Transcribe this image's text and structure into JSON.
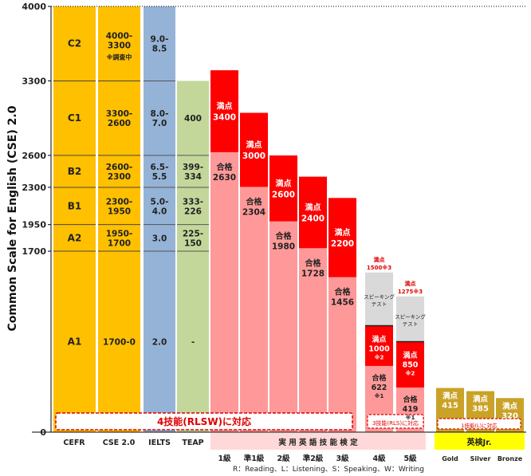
{
  "chart_data": {
    "type": "bar",
    "ylabel": "Common Scale for English (CSE) 2.0",
    "ylim": [
      0,
      4000
    ],
    "yticks": [
      0,
      1700,
      1950,
      2300,
      2600,
      3300,
      4000
    ],
    "cefr": {
      "label": "CEFR",
      "levels": [
        {
          "name": "C2",
          "lo": 3300,
          "hi": 4000
        },
        {
          "name": "C1",
          "lo": 2600,
          "hi": 3300
        },
        {
          "name": "B2",
          "lo": 2300,
          "hi": 2600
        },
        {
          "name": "B1",
          "lo": 1950,
          "hi": 2300
        },
        {
          "name": "A2",
          "lo": 1700,
          "hi": 1950
        },
        {
          "name": "A1",
          "lo": 0,
          "hi": 1700
        }
      ]
    },
    "cse": {
      "label": "CSE 2.0",
      "levels": [
        {
          "text": "4000-\n3300",
          "note": "※調査中"
        },
        {
          "text": "3300-\n2600"
        },
        {
          "text": "2600-\n2300"
        },
        {
          "text": "2300-\n1950"
        },
        {
          "text": "1950-\n1700"
        },
        {
          "text": "1700-0"
        }
      ]
    },
    "ielts": {
      "label": "IELTS",
      "levels": [
        "9.0-\n8.5",
        "8.0-\n7.0",
        "6.5-\n5.5",
        "5.0-\n4.0",
        "3.0",
        "2.0"
      ]
    },
    "teap": {
      "label": "TEAP",
      "max": 3300,
      "levels": [
        "400",
        "399-\n334",
        "333-\n226",
        "225-\n150",
        "-"
      ]
    },
    "eiken": {
      "group_label": "実 用 英 語 技 能 検 定",
      "full_label": "満点",
      "pass_label": "合格",
      "speaking_label": "スピーキング\nテスト",
      "grades": [
        {
          "name": "1級",
          "full": 3400,
          "pass": 2630
        },
        {
          "name": "準1級",
          "full": 3000,
          "pass": 2304
        },
        {
          "name": "2級",
          "full": 2600,
          "pass": 1980
        },
        {
          "name": "準2級",
          "full": 2400,
          "pass": 1728
        },
        {
          "name": "3級",
          "full": 2200,
          "pass": 1456
        },
        {
          "name": "4級",
          "full": 1000,
          "pass": 622,
          "full_note": "※2",
          "pass_note": "※1",
          "speaking_max": 1500,
          "speaking_note": "※3"
        },
        {
          "name": "5級",
          "full": 850,
          "pass": 419,
          "full_note": "※2",
          "pass_note": "※1",
          "speaking_max": 1275,
          "speaking_note": "※3"
        }
      ]
    },
    "eiken_jr": {
      "group_label": "英検Jr.",
      "full_label": "満点",
      "grades": [
        {
          "name": "Gold",
          "full": 415
        },
        {
          "name": "Silver",
          "full": 385
        },
        {
          "name": "Bronze",
          "full": 320
        }
      ]
    },
    "skill_labels": {
      "four_skills": "4技能(RLSW)に対応",
      "three_skills": "3技能(RLS)に対応",
      "one_skill": "1技能(L)に対応"
    },
    "legend_note": "R：Reading、L：Listening、S：Speaking、W：Writing",
    "colors": {
      "cefr": "#FFC000",
      "ielts": "#95B3D7",
      "teap": "#C4D79B",
      "eiken_full": "#FF0000",
      "eiken_pass": "#FF9999",
      "eiken_speaking": "#D9D9D9",
      "eiken_jr": "#C9A227",
      "eiken_jr_label_bg": "#FFFF00",
      "eiken_label_bg": "#FFD9D9"
    }
  }
}
